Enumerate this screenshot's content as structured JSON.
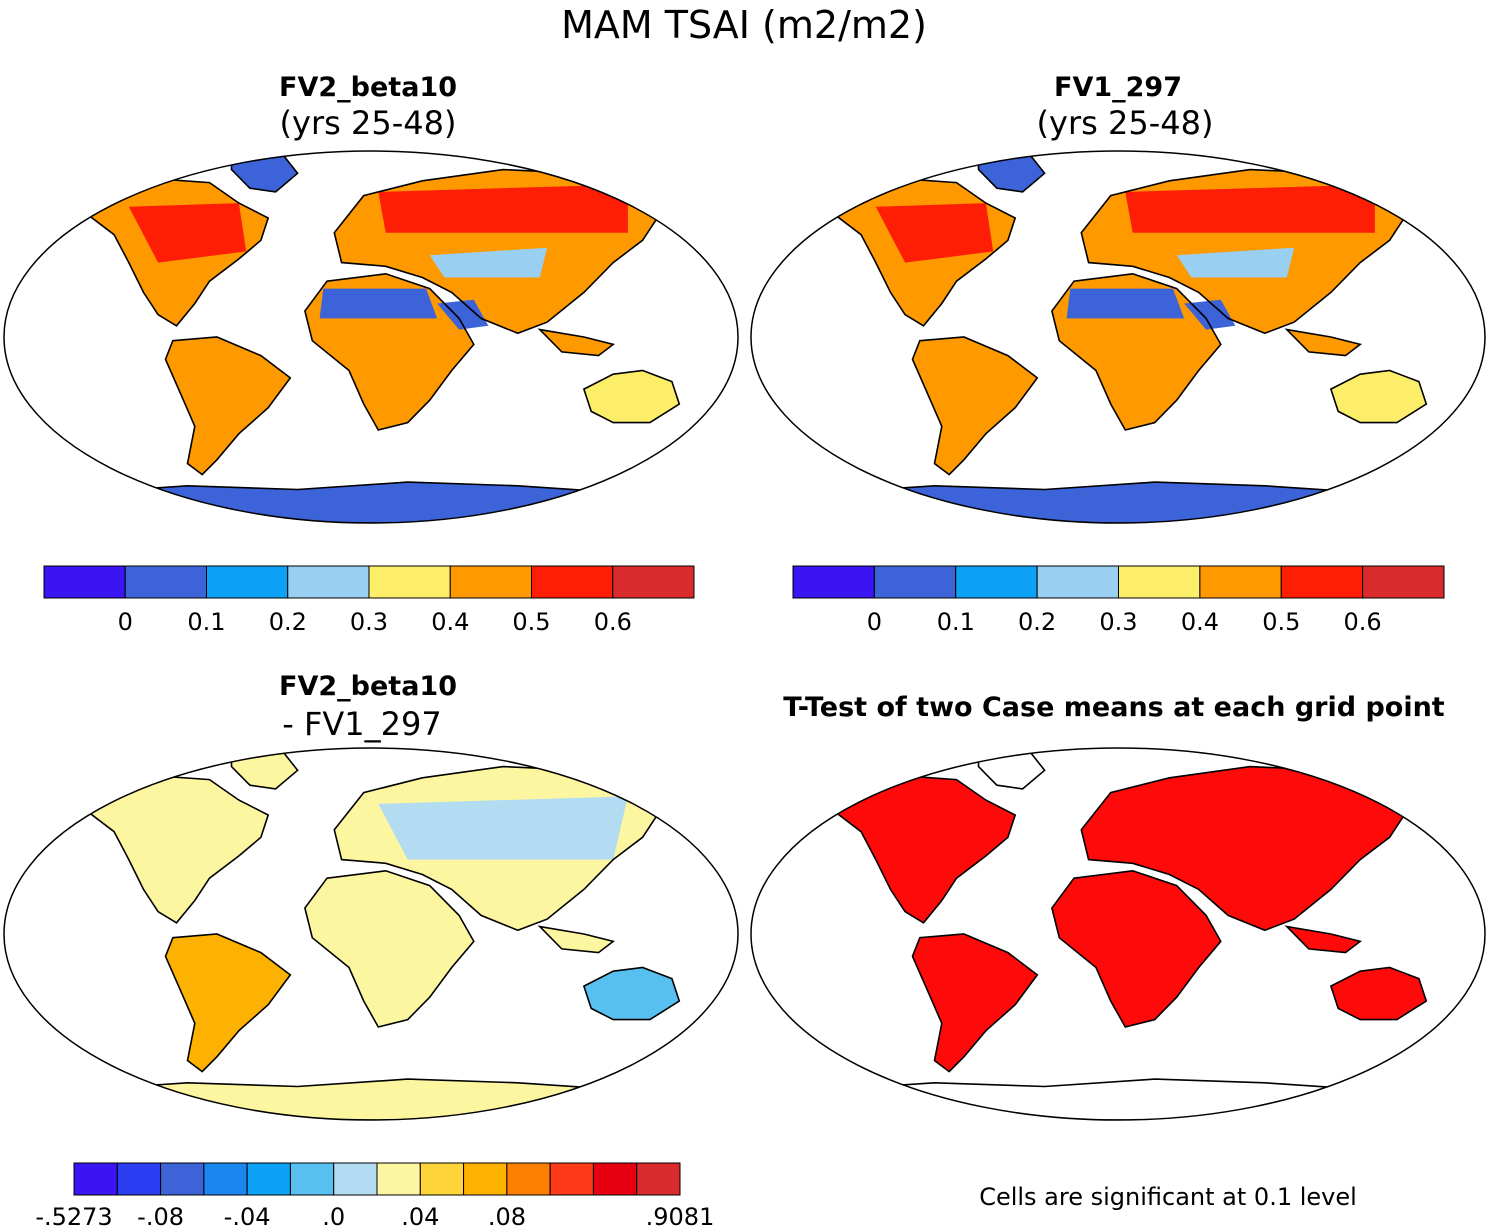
{
  "chart_data": {
    "title": "MAM TSAI (m2/m2)",
    "panels": [
      {
        "type": "heatmap",
        "id": "fv2",
        "title": "FV2_beta10",
        "subtitle": "(yrs 25-48)",
        "bins": [
          0,
          0.1,
          0.2,
          0.3,
          0.4,
          0.5,
          0.6
        ],
        "colorbar": {
          "colors": [
            "#3a14f2",
            "#3d63d9",
            "#0da2f5",
            "#99cff0",
            "#fdee6a",
            "#fe9900",
            "#fe1d05",
            "#d92b2b"
          ],
          "tick_labels": [
            "0",
            "0.1",
            "0.2",
            "0.3",
            "0.4",
            "0.5",
            "0.6"
          ]
        },
        "regions": [
          {
            "name": "Antarctica",
            "category": 1
          },
          {
            "name": "Greenland",
            "category": 1
          },
          {
            "name": "Sahara",
            "category": 1
          },
          {
            "name": "Arabian Peninsula",
            "category": 1
          },
          {
            "name": "Boreal Eurasia",
            "category": 6
          },
          {
            "name": "North America",
            "category": 6
          },
          {
            "name": "Amazonia",
            "category": 5
          },
          {
            "name": "Southern Africa",
            "category": 5
          },
          {
            "name": "Australia",
            "category": 4
          },
          {
            "name": "Central Asia",
            "category": 3
          }
        ]
      },
      {
        "type": "heatmap",
        "id": "fv1",
        "title": "FV1_297",
        "subtitle": "(yrs 25-48)",
        "bins": [
          0,
          0.1,
          0.2,
          0.3,
          0.4,
          0.5,
          0.6
        ],
        "colorbar": {
          "colors": [
            "#3a14f2",
            "#3d63d9",
            "#0da2f5",
            "#99cff0",
            "#fdee6a",
            "#fe9900",
            "#fe1d05",
            "#d92b2b"
          ],
          "tick_labels": [
            "0",
            "0.1",
            "0.2",
            "0.3",
            "0.4",
            "0.5",
            "0.6"
          ]
        },
        "regions": [
          {
            "name": "Antarctica",
            "category": 1
          },
          {
            "name": "Greenland",
            "category": 1
          },
          {
            "name": "Sahara",
            "category": 1
          },
          {
            "name": "Arabian Peninsula",
            "category": 1
          },
          {
            "name": "Boreal Eurasia",
            "category": 6
          },
          {
            "name": "North America",
            "category": 6
          },
          {
            "name": "Amazonia",
            "category": 5
          },
          {
            "name": "Southern Africa",
            "category": 5
          },
          {
            "name": "Australia",
            "category": 4
          },
          {
            "name": "Central Asia",
            "category": 3
          }
        ]
      },
      {
        "type": "heatmap",
        "id": "diff",
        "title": "FV2_beta10",
        "subtitle": "- FV1_297",
        "bins": [
          -0.5273,
          -0.08,
          -0.04,
          0.0,
          0.04,
          0.08,
          0.9081
        ],
        "colorbar": {
          "colors": [
            "#3a14f2",
            "#2b3df0",
            "#3d63d9",
            "#1c86f0",
            "#0da2f5",
            "#58c0f0",
            "#b3dcf2",
            "#fdf6a0",
            "#fdd43a",
            "#fdb100",
            "#fe7e00",
            "#fe3a1a",
            "#e60012",
            "#d92b2b"
          ],
          "tick_labels": [
            "-.5273",
            "-.08",
            "-.04",
            ".0",
            ".04",
            ".08",
            ".9081"
          ]
        },
        "regions": [
          {
            "name": "Antarctica",
            "category": 7
          },
          {
            "name": "Sahara",
            "category": 7
          },
          {
            "name": "Eurasia",
            "category": 6
          },
          {
            "name": "South America",
            "category": 9
          },
          {
            "name": "Australia",
            "category": 5
          }
        ]
      },
      {
        "type": "heatmap",
        "id": "ttest",
        "title": "T-Test of two Case means at each grid point",
        "footer": "Cells are significant at 0.1 level",
        "significance_level": 0.1,
        "significant_color": "#fe0a0a"
      }
    ]
  }
}
